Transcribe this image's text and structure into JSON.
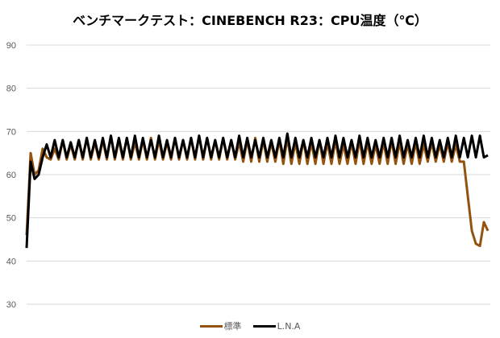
{
  "chart_data": {
    "type": "line",
    "title": "ベンチマークテスト：CINEBENCH R23：CPU温度（℃）",
    "xlabel": "",
    "ylabel": "",
    "ylim": [
      30,
      90
    ],
    "yticks": [
      30,
      40,
      50,
      60,
      70,
      80,
      90
    ],
    "grid": true,
    "legend": "bottom",
    "series": [
      {
        "name": "標準",
        "color": "#94520F",
        "values": [
          46,
          65,
          60,
          61,
          66,
          64,
          63.5,
          66,
          63.5,
          68,
          63.5,
          67,
          63.5,
          68,
          63.5,
          68.5,
          63.5,
          67.5,
          63.5,
          68,
          63.5,
          69,
          63.5,
          68,
          63.5,
          68.5,
          63.5,
          67.5,
          63.5,
          68,
          63.5,
          68.5,
          63.5,
          68,
          63.5,
          67.5,
          63.5,
          68.5,
          63.5,
          68,
          63.5,
          68.5,
          63.5,
          69,
          63.5,
          68.5,
          63.5,
          68,
          63.5,
          68.5,
          63.5,
          68,
          63.5,
          67.5,
          63,
          68,
          63,
          68.5,
          63,
          68,
          63,
          67.5,
          63,
          68,
          62.5,
          68.5,
          62.5,
          67.5,
          62.5,
          68,
          62.5,
          67.5,
          62.5,
          68,
          62.5,
          67.5,
          62.5,
          68,
          62.5,
          67,
          62.5,
          67.5,
          62.5,
          68,
          62.5,
          67.5,
          62.5,
          67,
          62.5,
          67.5,
          62.5,
          68,
          62.5,
          67.5,
          62.5,
          67,
          62.5,
          67.5,
          62.5,
          67,
          63,
          67.5,
          63,
          67,
          63,
          67.5,
          63,
          67,
          63,
          63,
          55,
          47,
          44,
          43.5,
          49,
          47
        ]
      },
      {
        "name": "L.N.A",
        "color": "#000000",
        "values": [
          43,
          63,
          59,
          60,
          64,
          67,
          64,
          68,
          64,
          68,
          64,
          67.5,
          64,
          68,
          64,
          68.5,
          64,
          68,
          64,
          68.5,
          64,
          69,
          64,
          68.5,
          64,
          68.5,
          64,
          69,
          64,
          68.5,
          64,
          68,
          64,
          69,
          64,
          68,
          64,
          68.5,
          64,
          68,
          64,
          68.5,
          64,
          69,
          64,
          68.5,
          64,
          68,
          64,
          68.5,
          64,
          68,
          64,
          69,
          64,
          68.5,
          64,
          68,
          64,
          68.5,
          64,
          68,
          64,
          68.5,
          64,
          69.5,
          64,
          68.5,
          64,
          68,
          64,
          68.5,
          64,
          68,
          64,
          68.5,
          64,
          69,
          64,
          68.5,
          64,
          68,
          64,
          69,
          64,
          68.5,
          64,
          68,
          64,
          68.5,
          64,
          68.5,
          64,
          69,
          64,
          68,
          64,
          68.5,
          64,
          69,
          64,
          68.5,
          64,
          68,
          64,
          68.5,
          64,
          69,
          64,
          68.5,
          64,
          69,
          64,
          69,
          64,
          64.5
        ]
      }
    ]
  }
}
